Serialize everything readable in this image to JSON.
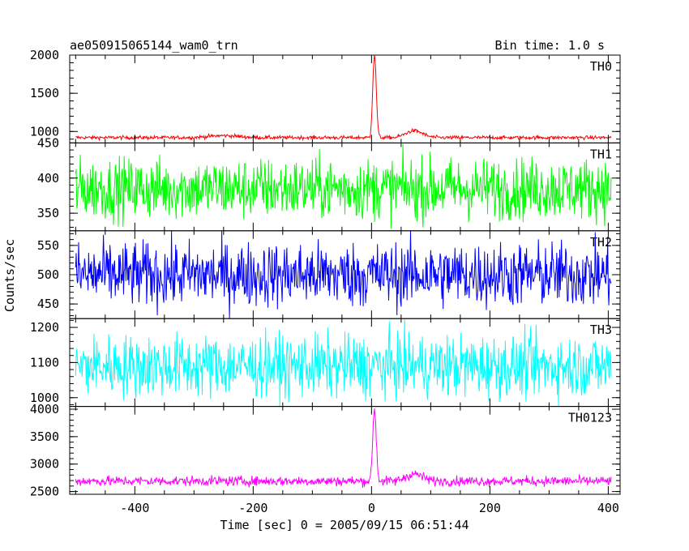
{
  "header": {
    "title": "ae050915065144_wam0_trn",
    "bin_time": "Bin time: 1.0 s"
  },
  "chart_data": {
    "type": "line",
    "xlabel": "Time [sec] 0 = 2005/09/15 06:51:44",
    "ylabel": "Counts/sec",
    "xlim": [
      -510,
      420
    ],
    "x_ticks": [
      -400,
      -200,
      0,
      200,
      400
    ],
    "x_range": [
      -500,
      405
    ],
    "series": [
      {
        "name": "TH0",
        "color": "#ff0000",
        "ylim": [
          850,
          2000
        ],
        "y_ticks": [
          1000,
          1500,
          2000
        ],
        "baseline": 920,
        "noise": 12,
        "features": [
          {
            "x": 5,
            "peak": 2000,
            "width": 3
          },
          {
            "x": 72,
            "peak": 1010,
            "width": 14
          },
          {
            "x": -250,
            "peak": 945,
            "width": 25
          }
        ]
      },
      {
        "name": "TH1",
        "color": "#00ff00",
        "ylim": [
          325,
          450
        ],
        "y_ticks": [
          350,
          400,
          450
        ],
        "baseline": 385,
        "noise": 22,
        "features": []
      },
      {
        "name": "TH2",
        "color": "#0000ff",
        "ylim": [
          425,
          575
        ],
        "y_ticks": [
          450,
          500,
          550
        ],
        "baseline": 500,
        "noise": 28,
        "features": []
      },
      {
        "name": "TH3",
        "color": "#00ffff",
        "ylim": [
          975,
          1225
        ],
        "y_ticks": [
          1000,
          1100,
          1200
        ],
        "baseline": 1090,
        "noise": 45,
        "features": []
      },
      {
        "name": "TH0123",
        "color": "#ff00ff",
        "ylim": [
          2450,
          4050
        ],
        "y_ticks": [
          2500,
          3000,
          3500,
          4000
        ],
        "baseline": 2690,
        "noise": 45,
        "features": [
          {
            "x": 5,
            "peak": 4000,
            "width": 3
          },
          {
            "x": 72,
            "peak": 2820,
            "width": 14
          }
        ]
      }
    ]
  }
}
